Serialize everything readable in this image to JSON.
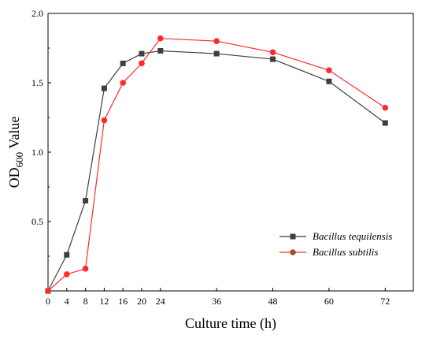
{
  "chart_data": {
    "type": "line",
    "xlabel": "Culture time (h)",
    "ylabel": {
      "main": "OD",
      "sub": "600",
      "rest": " Value"
    },
    "xlim": [
      0,
      78
    ],
    "ylim": [
      0,
      2.0
    ],
    "x_ticks": [
      0,
      4,
      8,
      12,
      16,
      20,
      24,
      36,
      48,
      60,
      72
    ],
    "y_ticks": [
      0.5,
      1.0,
      1.5,
      2.0
    ],
    "y_tick_labels": [
      "0.5",
      "1.0",
      "1.5",
      "2.0"
    ],
    "x_tick_labels": [
      "0",
      "4",
      "8",
      "12",
      "16",
      "20",
      "24",
      "36",
      "48",
      "60",
      "72"
    ],
    "x_tick_top_label": "",
    "legend_position": "lower-right",
    "series": [
      {
        "name": "Bacillus tequilensis",
        "color": "#3f3f3f",
        "marker": "square",
        "x": [
          0,
          4,
          8,
          12,
          16,
          20,
          24,
          36,
          48,
          60,
          72
        ],
        "y": [
          0.0,
          0.26,
          0.65,
          1.46,
          1.64,
          1.71,
          1.73,
          1.71,
          1.67,
          1.51,
          1.21
        ],
        "error": [
          0,
          0.01,
          0.01,
          0.01,
          0.01,
          0.01,
          0.01,
          0.01,
          0.01,
          0.01,
          0.01
        ]
      },
      {
        "name": "Bacillus subtilis",
        "color": "#ff2a2a",
        "legend_marker_color": "#a0522d",
        "marker": "circle",
        "x": [
          0,
          4,
          8,
          12,
          16,
          20,
          24,
          36,
          48,
          60,
          72
        ],
        "y": [
          0.0,
          0.12,
          0.16,
          1.23,
          1.5,
          1.64,
          1.82,
          1.8,
          1.72,
          1.59,
          1.32
        ],
        "error": [
          0,
          0.01,
          0.01,
          0.01,
          0.01,
          0.01,
          0.01,
          0.01,
          0.01,
          0.01,
          0.01
        ]
      }
    ]
  }
}
